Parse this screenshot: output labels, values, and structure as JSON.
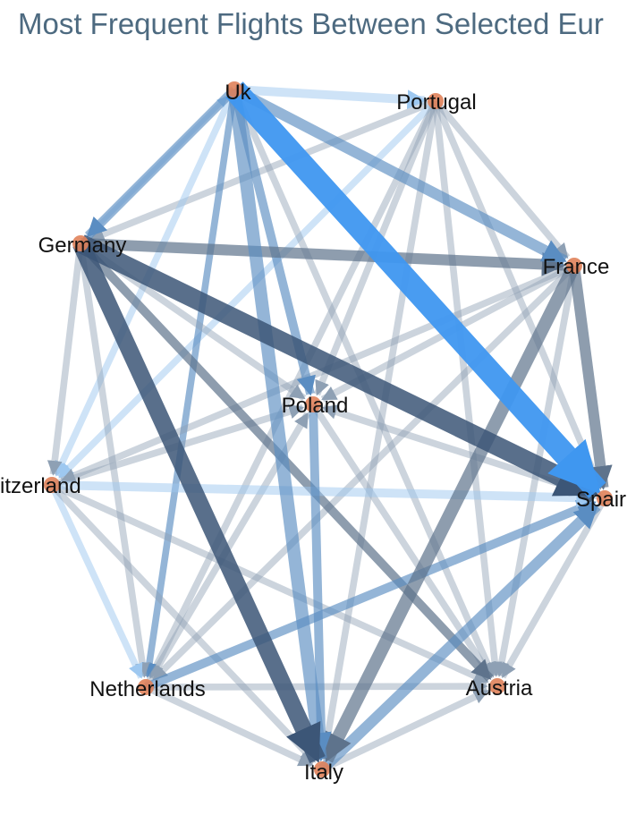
{
  "title": "Most Frequent Flights Between Selected Eur",
  "colors": {
    "title": "#4d6a80",
    "node": "#e0825a",
    "edge_strong_blue": "#3f97f0",
    "edge_dark": "#3c5677",
    "edge_mid_blue": "#5a8dc2",
    "edge_light_blue": "#9ec8f0",
    "edge_grey": "#8ea0b4",
    "edge_slate": "#5e738c"
  },
  "nodes": [
    {
      "id": "uk",
      "label": "Uk"
    },
    {
      "id": "portugal",
      "label": "Portugal"
    },
    {
      "id": "germany",
      "label": "Germany"
    },
    {
      "id": "france",
      "label": "France"
    },
    {
      "id": "poland",
      "label": "Poland"
    },
    {
      "id": "switzerland",
      "label": "itzerland"
    },
    {
      "id": "spain",
      "label": "Spair"
    },
    {
      "id": "netherlands",
      "label": "Netherlands"
    },
    {
      "id": "austria",
      "label": "Austria"
    },
    {
      "id": "italy",
      "label": "Italy"
    }
  ],
  "edges": [
    {
      "source": "uk",
      "target": "spain",
      "weight": 10,
      "color": "edge_strong_blue"
    },
    {
      "source": "germany",
      "target": "spain",
      "weight": 8,
      "color": "edge_dark"
    },
    {
      "source": "germany",
      "target": "italy",
      "weight": 7,
      "color": "edge_dark"
    },
    {
      "source": "france",
      "target": "italy",
      "weight": 5,
      "color": "edge_slate"
    },
    {
      "source": "germany",
      "target": "france",
      "weight": 4,
      "color": "edge_slate"
    },
    {
      "source": "france",
      "target": "spain",
      "weight": 4,
      "color": "edge_slate"
    },
    {
      "source": "uk",
      "target": "italy",
      "weight": 5,
      "color": "edge_mid_blue"
    },
    {
      "source": "uk",
      "target": "france",
      "weight": 4,
      "color": "edge_mid_blue"
    },
    {
      "source": "italy",
      "target": "spain",
      "weight": 4,
      "color": "edge_mid_blue"
    },
    {
      "source": "germany",
      "target": "austria",
      "weight": 3,
      "color": "edge_slate"
    },
    {
      "source": "uk",
      "target": "germany",
      "weight": 3,
      "color": "edge_mid_blue"
    },
    {
      "source": "uk",
      "target": "portugal",
      "weight": 3,
      "color": "edge_light_blue"
    },
    {
      "source": "uk",
      "target": "poland",
      "weight": 3,
      "color": "edge_mid_blue"
    },
    {
      "source": "netherlands",
      "target": "spain",
      "weight": 3,
      "color": "edge_mid_blue"
    },
    {
      "source": "switzerland",
      "target": "spain",
      "weight": 3,
      "color": "edge_light_blue"
    },
    {
      "source": "poland",
      "target": "italy",
      "weight": 3,
      "color": "edge_mid_blue"
    },
    {
      "source": "portugal",
      "target": "germany",
      "weight": 2,
      "color": "edge_grey"
    },
    {
      "source": "portugal",
      "target": "france",
      "weight": 2,
      "color": "edge_grey"
    },
    {
      "source": "portugal",
      "target": "spain",
      "weight": 2,
      "color": "edge_grey"
    },
    {
      "source": "portugal",
      "target": "switzerland",
      "weight": 2,
      "color": "edge_light_blue"
    },
    {
      "source": "portugal",
      "target": "netherlands",
      "weight": 2,
      "color": "edge_grey"
    },
    {
      "source": "portugal",
      "target": "italy",
      "weight": 2,
      "color": "edge_grey"
    },
    {
      "source": "portugal",
      "target": "austria",
      "weight": 2,
      "color": "edge_grey"
    },
    {
      "source": "portugal",
      "target": "poland",
      "weight": 2,
      "color": "edge_grey"
    },
    {
      "source": "uk",
      "target": "switzerland",
      "weight": 2,
      "color": "edge_light_blue"
    },
    {
      "source": "uk",
      "target": "netherlands",
      "weight": 2,
      "color": "edge_mid_blue"
    },
    {
      "source": "uk",
      "target": "austria",
      "weight": 2,
      "color": "edge_grey"
    },
    {
      "source": "germany",
      "target": "switzerland",
      "weight": 2,
      "color": "edge_grey"
    },
    {
      "source": "germany",
      "target": "netherlands",
      "weight": 2,
      "color": "edge_grey"
    },
    {
      "source": "germany",
      "target": "poland",
      "weight": 2,
      "color": "edge_grey"
    },
    {
      "source": "france",
      "target": "switzerland",
      "weight": 2,
      "color": "edge_grey"
    },
    {
      "source": "france",
      "target": "netherlands",
      "weight": 2,
      "color": "edge_grey"
    },
    {
      "source": "france",
      "target": "poland",
      "weight": 2,
      "color": "edge_grey"
    },
    {
      "source": "france",
      "target": "austria",
      "weight": 2,
      "color": "edge_grey"
    },
    {
      "source": "switzerland",
      "target": "netherlands",
      "weight": 2,
      "color": "edge_light_blue"
    },
    {
      "source": "switzerland",
      "target": "italy",
      "weight": 2,
      "color": "edge_grey"
    },
    {
      "source": "switzerland",
      "target": "austria",
      "weight": 2,
      "color": "edge_grey"
    },
    {
      "source": "switzerland",
      "target": "poland",
      "weight": 2,
      "color": "edge_grey"
    },
    {
      "source": "spain",
      "target": "austria",
      "weight": 2,
      "color": "edge_grey"
    },
    {
      "source": "spain",
      "target": "poland",
      "weight": 2,
      "color": "edge_grey"
    },
    {
      "source": "netherlands",
      "target": "italy",
      "weight": 2,
      "color": "edge_grey"
    },
    {
      "source": "netherlands",
      "target": "austria",
      "weight": 2,
      "color": "edge_grey"
    },
    {
      "source": "netherlands",
      "target": "poland",
      "weight": 2,
      "color": "edge_grey"
    },
    {
      "source": "italy",
      "target": "austria",
      "weight": 2,
      "color": "edge_grey"
    },
    {
      "source": "poland",
      "target": "austria",
      "weight": 2,
      "color": "edge_grey"
    },
    {
      "source": "germany",
      "target": "uk",
      "weight": 1,
      "color": "edge_light_blue"
    }
  ]
}
